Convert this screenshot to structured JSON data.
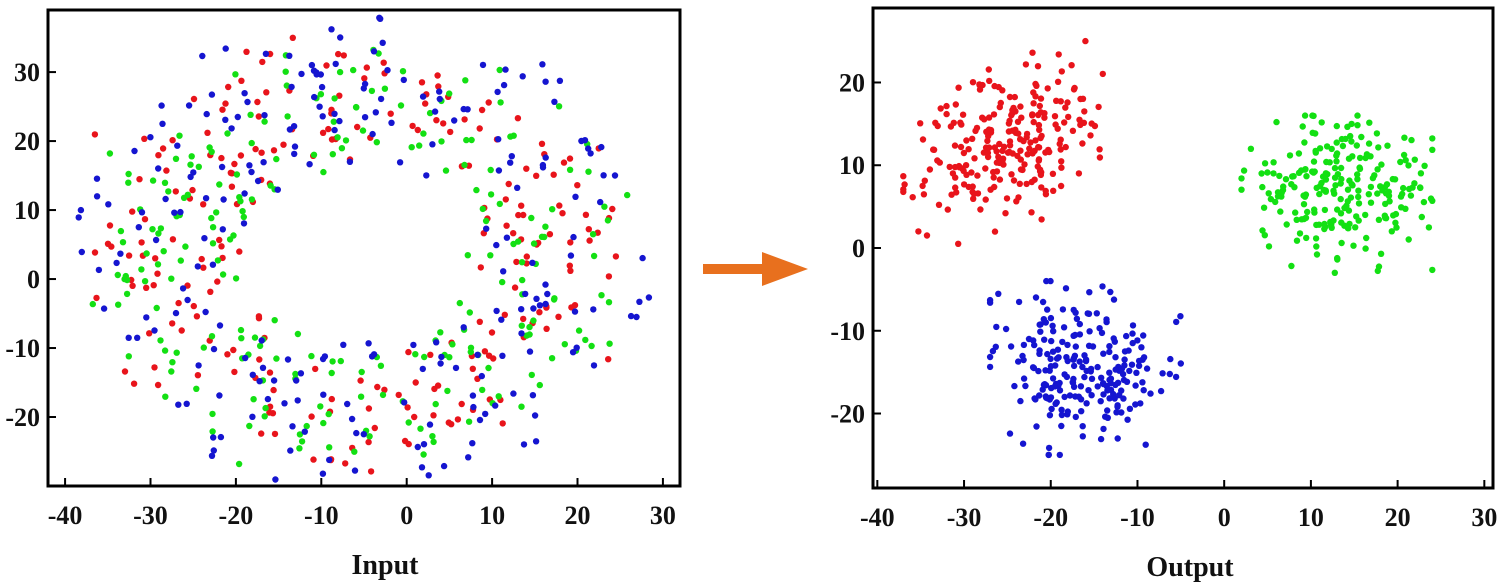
{
  "chart_data": [
    {
      "type": "scatter",
      "xlabel": "Input",
      "ylabel": "",
      "xlim": [
        -42,
        32
      ],
      "ylim": [
        -30,
        39
      ],
      "xticks": [
        -40,
        -30,
        -20,
        -10,
        0,
        10,
        20,
        30
      ],
      "yticks": [
        30,
        20,
        10,
        0,
        -10,
        -20
      ],
      "xtick_labels": [
        "-40",
        "-30",
        "-20",
        "-10",
        "0",
        "10",
        "20",
        "30"
      ],
      "ytick_labels": [
        "30",
        "20",
        "10",
        "0",
        "-10",
        "-20"
      ],
      "grid": false,
      "legend": "none",
      "series": [
        {
          "color": "#e8141b",
          "shape": "noisy ring",
          "center": [
            -5,
            4
          ],
          "radius_range": [
            15,
            32
          ],
          "count": 230,
          "seed": 11
        },
        {
          "color": "#13e013",
          "shape": "noisy ring",
          "center": [
            -5,
            4
          ],
          "radius_range": [
            15,
            31
          ],
          "count": 230,
          "seed": 23
        },
        {
          "color": "#1515d0",
          "shape": "noisy ring",
          "center": [
            -5,
            4
          ],
          "radius_range": [
            15,
            35
          ],
          "count": 230,
          "seed": 37
        }
      ]
    },
    {
      "type": "scatter",
      "xlabel": "Output",
      "ylabel": "",
      "xlim": [
        -40.5,
        31
      ],
      "ylim": [
        -29,
        29
      ],
      "xticks": [
        -40,
        -30,
        -20,
        -10,
        0,
        10,
        20,
        30
      ],
      "yticks": [
        20,
        10,
        0,
        -10,
        -20
      ],
      "xtick_labels": [
        "-40",
        "-30",
        "-20",
        "-10",
        "0",
        "10",
        "20",
        "30"
      ],
      "ytick_labels": [
        "20",
        "10",
        "0",
        "-10",
        "-20"
      ],
      "grid": false,
      "legend": "none",
      "series": [
        {
          "color": "#e8141b",
          "shape": "cluster",
          "center": [
            -26,
            14
          ],
          "x_range": [
            -37,
            -14
          ],
          "y_range": [
            0,
            25
          ],
          "count": 240,
          "seed": 51
        },
        {
          "color": "#13e013",
          "shape": "cluster",
          "center": [
            13,
            6
          ],
          "x_range": [
            2,
            24
          ],
          "y_range": [
            -3,
            16
          ],
          "count": 230,
          "seed": 67
        },
        {
          "color": "#1515d0",
          "shape": "cluster",
          "center": [
            -16,
            -14
          ],
          "x_range": [
            -27,
            -5
          ],
          "y_range": [
            -25,
            -4
          ],
          "count": 230,
          "seed": 89
        }
      ]
    }
  ],
  "arrow": {
    "color": "#e8701e"
  }
}
